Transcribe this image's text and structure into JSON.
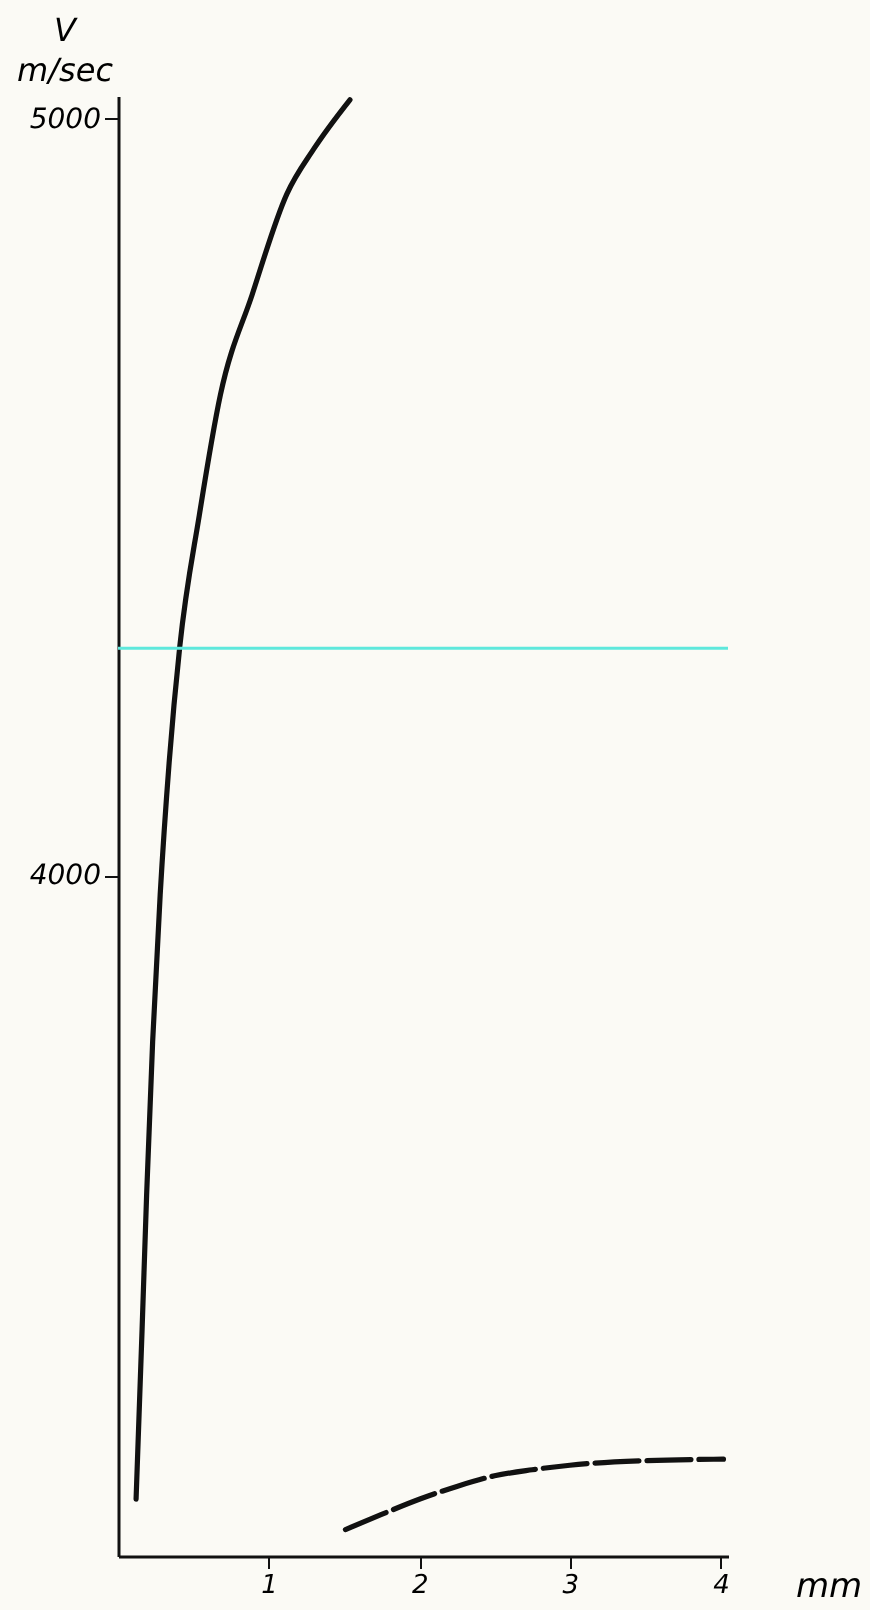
{
  "chart_data": {
    "type": "line",
    "xlabel": "mm",
    "ylabel": "V\nm/sec",
    "xlim": [
      0,
      4.05
    ],
    "ylim": [
      3100,
      5030
    ],
    "xticks": [
      1,
      2,
      3,
      4
    ],
    "yticks": [
      4000,
      5000
    ],
    "grid": false,
    "series": [
      {
        "color": "#111111",
        "line_style": "solid",
        "x": [
          0.12,
          0.16,
          0.19,
          0.23,
          0.28,
          0.34,
          0.41,
          0.54,
          0.68,
          0.89,
          1.12,
          1.3,
          1.54
        ],
        "values": [
          3175,
          3400,
          3577,
          3780,
          3974,
          4150,
          4302,
          4476,
          4635,
          4767,
          4900,
          4960,
          5025
        ]
      },
      {
        "color": "#111111",
        "line_style": "dashed",
        "x": [
          1.51,
          1.75,
          2.0,
          2.25,
          2.5,
          2.75,
          3.0,
          3.5,
          4.02
        ],
        "values": [
          3135,
          3155,
          3175,
          3192,
          3206,
          3214,
          3220,
          3226,
          3228
        ]
      }
    ],
    "ref_lines": [
      {
        "axis": "y",
        "value": 4300,
        "color": "#5ee8dc"
      }
    ]
  }
}
